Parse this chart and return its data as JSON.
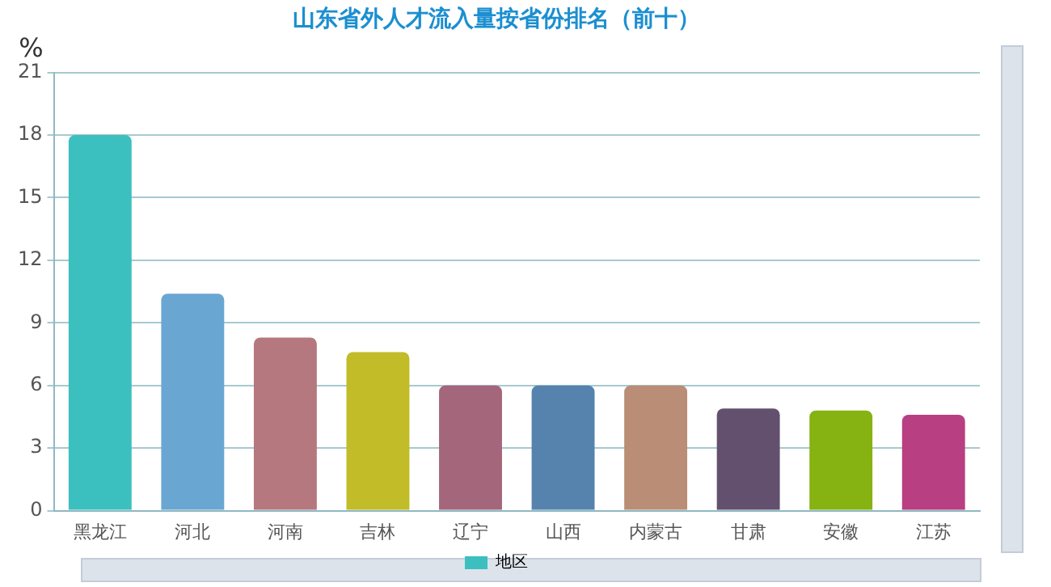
{
  "chart_data": {
    "type": "bar",
    "title": "山东省外人才流入量按省份排名（前十）",
    "ylabel": "%",
    "categories": [
      "黑龙江",
      "河北",
      "河南",
      "吉林",
      "辽宁",
      "山西",
      "内蒙古",
      "甘肃",
      "安徽",
      "江苏"
    ],
    "series": [
      {
        "name": "地区",
        "color": "#3cbfbf",
        "colors": [
          "#3cbfbf",
          "#6aa6d2",
          "#b5787e",
          "#c1bc27",
          "#a4667a",
          "#5683ae",
          "#b98d76",
          "#62506e",
          "#86b212",
          "#b83f82"
        ],
        "values": [
          18.0,
          10.4,
          8.3,
          7.6,
          6.0,
          6.0,
          6.0,
          4.9,
          4.8,
          4.6
        ]
      }
    ],
    "ylim": [
      0,
      21
    ],
    "yticks": [
      0,
      3,
      6,
      9,
      12,
      15,
      18,
      21
    ],
    "grid": "y",
    "legend": "bottom"
  }
}
